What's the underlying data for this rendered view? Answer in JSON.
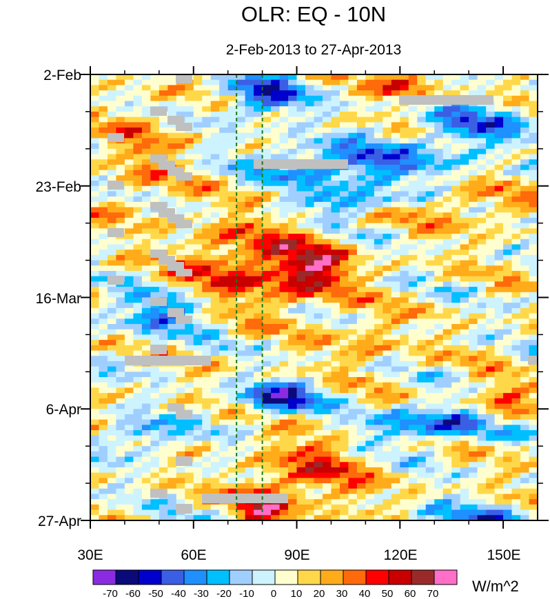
{
  "chart_data": {
    "type": "heatmap",
    "title": "OLR: EQ - 10N",
    "subtitle": "2-Feb-2013 to 27-Apr-2013",
    "xlabel": "",
    "ylabel": "",
    "x_range": [
      30,
      160
    ],
    "x_ticks": [
      30,
      60,
      90,
      120,
      150
    ],
    "x_tick_labels": [
      "30E",
      "60E",
      "90E",
      "120E",
      "150E"
    ],
    "y_tick_labels": [
      "2-Feb",
      "23-Feb",
      "16-Mar",
      "6-Apr",
      "27-Apr"
    ],
    "y_tick_day_offsets": [
      0,
      21,
      42,
      63,
      84
    ],
    "reference_lines_lon": [
      72.5,
      80
    ],
    "units": "W/m^2",
    "levels": [
      -70,
      -60,
      -50,
      -40,
      -30,
      -20,
      -10,
      0,
      10,
      20,
      30,
      40,
      50,
      60,
      70
    ],
    "colors": [
      "#8a2be2",
      "#0a0a7a",
      "#0000cd",
      "#3a5fe5",
      "#1e90ff",
      "#00bfff",
      "#a0cfff",
      "#cdf3ff",
      "#fffecf",
      "#ffd84a",
      "#ffab1a",
      "#ff6a0a",
      "#ff0000",
      "#c80000",
      "#9a2a2a",
      "#ff6ec7"
    ],
    "missing_color": "#c0c0c0",
    "anomaly_features": [
      {
        "lon": 75,
        "day": 36,
        "value": 40,
        "spread_lon": 18,
        "spread_day": 8
      },
      {
        "lon": 95,
        "day": 37,
        "value": 50,
        "spread_lon": 10,
        "spread_day": 5
      },
      {
        "lon": 95,
        "day": 75,
        "value": 30,
        "spread_lon": 14,
        "spread_day": 8
      },
      {
        "lon": 80,
        "day": 81,
        "value": 40,
        "spread_lon": 8,
        "spread_day": 5
      },
      {
        "lon": 45,
        "day": 15,
        "value": 20,
        "spread_lon": 12,
        "spread_day": 10
      },
      {
        "lon": 122,
        "day": 2,
        "value": 40,
        "spread_lon": 8,
        "spread_day": 3
      },
      {
        "lon": 140,
        "day": 25,
        "value": 20,
        "spread_lon": 18,
        "spread_day": 4
      },
      {
        "lon": 150,
        "day": 62,
        "value": 30,
        "spread_lon": 8,
        "spread_day": 4
      },
      {
        "lon": 110,
        "day": 50,
        "value": 20,
        "spread_lon": 10,
        "spread_day": 5
      },
      {
        "lon": 80,
        "day": 4,
        "value": -50,
        "spread_lon": 12,
        "spread_day": 4
      },
      {
        "lon": 105,
        "day": 17,
        "value": -50,
        "spread_lon": 25,
        "spread_day": 4
      },
      {
        "lon": 85,
        "day": 61,
        "value": -60,
        "spread_lon": 12,
        "spread_day": 3
      },
      {
        "lon": 130,
        "day": 66,
        "value": -50,
        "spread_lon": 20,
        "spread_day": 3
      },
      {
        "lon": 50,
        "day": 45,
        "value": -40,
        "spread_lon": 15,
        "spread_day": 4
      },
      {
        "lon": 140,
        "day": 10,
        "value": -40,
        "spread_lon": 15,
        "spread_day": 5
      },
      {
        "lon": 105,
        "day": 24,
        "value": -40,
        "spread_lon": 15,
        "spread_day": 2
      },
      {
        "lon": 45,
        "day": 68,
        "value": -40,
        "spread_lon": 10,
        "spread_day": 3
      },
      {
        "lon": 140,
        "day": 84,
        "value": -40,
        "spread_lon": 15,
        "spread_day": 3
      }
    ]
  }
}
